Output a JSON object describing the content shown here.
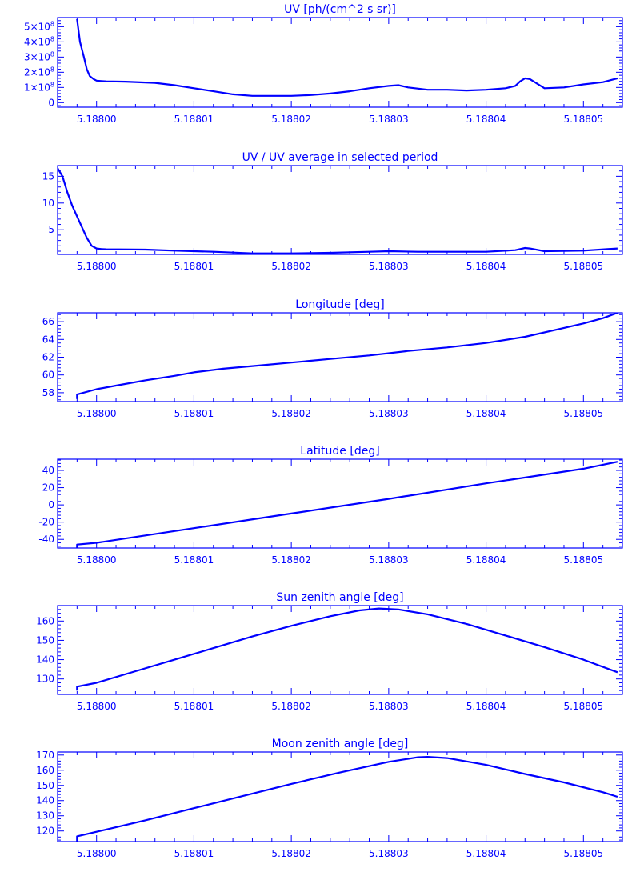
{
  "style": {
    "color": "#0000ff",
    "background": "#ffffff"
  },
  "chart_data": [
    {
      "type": "line",
      "title": "UV [ph/(cm^2 s sr)]",
      "xlim": [
        5.187996,
        5.188054
      ],
      "ylim": [
        -0.3,
        5.6
      ],
      "y_scale_label": "x10^8",
      "xticks": [
        {
          "v": 5.188,
          "label": "5.18800"
        },
        {
          "v": 5.18801,
          "label": "5.18801"
        },
        {
          "v": 5.18802,
          "label": "5.18802"
        },
        {
          "v": 5.18803,
          "label": "5.18803"
        },
        {
          "v": 5.18804,
          "label": "5.18804"
        },
        {
          "v": 5.18805,
          "label": "5.18805"
        }
      ],
      "yticks": [
        {
          "v": 0,
          "base": "0",
          "exp": ""
        },
        {
          "v": 1,
          "base": "1×10",
          "exp": "8"
        },
        {
          "v": 2,
          "base": "2×10",
          "exp": "8"
        },
        {
          "v": 3,
          "base": "3×10",
          "exp": "8"
        },
        {
          "v": 4,
          "base": "4×10",
          "exp": "8"
        },
        {
          "v": 5,
          "base": "5×10",
          "exp": "8"
        }
      ],
      "series": [
        {
          "x": [
            5.187998,
            5.1879983,
            5.1879987,
            5.187999,
            5.1879993,
            5.1879997,
            5.188,
            5.1880005,
            5.188001,
            5.188003,
            5.188006,
            5.188008,
            5.18801,
            5.188012,
            5.188014,
            5.188016,
            5.188018,
            5.18802,
            5.188022,
            5.188024,
            5.188026,
            5.188028,
            5.18803,
            5.188031,
            5.188032,
            5.188034,
            5.188036,
            5.188038,
            5.18804,
            5.188042,
            5.188043,
            5.1880435,
            5.188044,
            5.1880445,
            5.188045,
            5.188046,
            5.188048,
            5.18805,
            5.188052,
            5.1880535
          ],
          "y": [
            5.5,
            4.0,
            3.0,
            2.2,
            1.75,
            1.55,
            1.45,
            1.42,
            1.4,
            1.38,
            1.3,
            1.15,
            0.95,
            0.75,
            0.55,
            0.45,
            0.45,
            0.45,
            0.5,
            0.6,
            0.75,
            0.95,
            1.1,
            1.15,
            1.0,
            0.85,
            0.85,
            0.8,
            0.85,
            0.95,
            1.1,
            1.4,
            1.6,
            1.55,
            1.35,
            0.95,
            1.0,
            1.2,
            1.35,
            1.6
          ]
        }
      ]
    },
    {
      "type": "line",
      "title": "UV / UV average in selected period",
      "xlim": [
        5.187996,
        5.188054
      ],
      "ylim": [
        0.4,
        17
      ],
      "xticks": [
        {
          "v": 5.188,
          "label": "5.18800"
        },
        {
          "v": 5.18801,
          "label": "5.18801"
        },
        {
          "v": 5.18802,
          "label": "5.18802"
        },
        {
          "v": 5.18803,
          "label": "5.18803"
        },
        {
          "v": 5.18804,
          "label": "5.18804"
        },
        {
          "v": 5.18805,
          "label": "5.18805"
        }
      ],
      "yticks": [
        {
          "v": 5,
          "base": "5",
          "exp": ""
        },
        {
          "v": 10,
          "base": "10",
          "exp": ""
        },
        {
          "v": 15,
          "base": "15",
          "exp": ""
        }
      ],
      "series": [
        {
          "x": [
            5.187996,
            5.1879965,
            5.187997,
            5.1879975,
            5.187998,
            5.1879985,
            5.187999,
            5.1879995,
            5.188,
            5.1880005,
            5.188001,
            5.188005,
            5.188008,
            5.188012,
            5.188016,
            5.18802,
            5.188024,
            5.188028,
            5.18803,
            5.188033,
            5.188036,
            5.18804,
            5.188043,
            5.188044,
            5.1880445,
            5.188046,
            5.18805,
            5.1880535
          ],
          "y": [
            16.5,
            15.0,
            12.0,
            9.5,
            7.5,
            5.5,
            3.5,
            2.0,
            1.5,
            1.4,
            1.35,
            1.3,
            1.1,
            0.9,
            0.6,
            0.6,
            0.7,
            0.9,
            1.0,
            0.9,
            0.9,
            0.9,
            1.2,
            1.6,
            1.5,
            1.0,
            1.1,
            1.5
          ]
        }
      ]
    },
    {
      "type": "line",
      "title": "Longitude [deg]",
      "xlim": [
        5.187996,
        5.188054
      ],
      "ylim": [
        57.0,
        67.0
      ],
      "xticks": [
        {
          "v": 5.188,
          "label": "5.18800"
        },
        {
          "v": 5.18801,
          "label": "5.18801"
        },
        {
          "v": 5.18802,
          "label": "5.18802"
        },
        {
          "v": 5.18803,
          "label": "5.18803"
        },
        {
          "v": 5.18804,
          "label": "5.18804"
        },
        {
          "v": 5.18805,
          "label": "5.18805"
        }
      ],
      "yticks": [
        {
          "v": 58,
          "base": "58",
          "exp": ""
        },
        {
          "v": 60,
          "base": "60",
          "exp": ""
        },
        {
          "v": 62,
          "base": "62",
          "exp": ""
        },
        {
          "v": 64,
          "base": "64",
          "exp": ""
        },
        {
          "v": 66,
          "base": "66",
          "exp": ""
        }
      ],
      "series": [
        {
          "x": [
            5.187998,
            5.187998,
            5.188,
            5.188002,
            5.188005,
            5.188008,
            5.18801,
            5.188013,
            5.188016,
            5.18802,
            5.188024,
            5.188028,
            5.188032,
            5.188036,
            5.18804,
            5.188044,
            5.188048,
            5.18805,
            5.188052,
            5.1880535
          ],
          "y": [
            57.3,
            57.8,
            58.4,
            58.8,
            59.4,
            59.9,
            60.3,
            60.7,
            61.0,
            61.4,
            61.8,
            62.2,
            62.7,
            63.1,
            63.6,
            64.3,
            65.3,
            65.8,
            66.4,
            67.0
          ]
        }
      ]
    },
    {
      "type": "line",
      "title": "Latitude [deg]",
      "xlim": [
        5.187996,
        5.188054
      ],
      "ylim": [
        -50,
        53
      ],
      "xticks": [
        {
          "v": 5.188,
          "label": "5.18800"
        },
        {
          "v": 5.18801,
          "label": "5.18801"
        },
        {
          "v": 5.18802,
          "label": "5.18802"
        },
        {
          "v": 5.18803,
          "label": "5.18803"
        },
        {
          "v": 5.18804,
          "label": "5.18804"
        },
        {
          "v": 5.18805,
          "label": "5.18805"
        }
      ],
      "yticks": [
        {
          "v": -40,
          "base": "-40",
          "exp": ""
        },
        {
          "v": -20,
          "base": "-20",
          "exp": ""
        },
        {
          "v": 0,
          "base": "0",
          "exp": ""
        },
        {
          "v": 20,
          "base": "20",
          "exp": ""
        },
        {
          "v": 40,
          "base": "40",
          "exp": ""
        }
      ],
      "series": [
        {
          "x": [
            5.187998,
            5.187998,
            5.188,
            5.18801,
            5.18802,
            5.18803,
            5.18804,
            5.18805,
            5.1880535
          ],
          "y": [
            -50,
            -46,
            -44,
            -27,
            -10,
            7,
            25,
            42,
            50
          ]
        }
      ]
    },
    {
      "type": "line",
      "title": "Sun zenith angle [deg]",
      "xlim": [
        5.187996,
        5.188054
      ],
      "ylim": [
        122,
        168
      ],
      "xticks": [
        {
          "v": 5.188,
          "label": "5.18800"
        },
        {
          "v": 5.18801,
          "label": "5.18801"
        },
        {
          "v": 5.18802,
          "label": "5.18802"
        },
        {
          "v": 5.18803,
          "label": "5.18803"
        },
        {
          "v": 5.18804,
          "label": "5.18804"
        },
        {
          "v": 5.18805,
          "label": "5.18805"
        }
      ],
      "yticks": [
        {
          "v": 130,
          "base": "130",
          "exp": ""
        },
        {
          "v": 140,
          "base": "140",
          "exp": ""
        },
        {
          "v": 150,
          "base": "150",
          "exp": ""
        },
        {
          "v": 160,
          "base": "160",
          "exp": ""
        }
      ],
      "series": [
        {
          "x": [
            5.187998,
            5.187998,
            5.188,
            5.188004,
            5.188008,
            5.188012,
            5.188016,
            5.18802,
            5.188024,
            5.188027,
            5.188029,
            5.188031,
            5.188034,
            5.188038,
            5.188042,
            5.188046,
            5.18805,
            5.1880535
          ],
          "y": [
            124,
            126,
            128,
            134,
            140,
            146,
            152,
            157.5,
            162.5,
            165.5,
            166.5,
            166,
            163.5,
            158.5,
            152.5,
            146.5,
            140,
            133.5
          ]
        }
      ]
    },
    {
      "type": "line",
      "title": "Moon zenith angle [deg]",
      "xlim": [
        5.187996,
        5.188054
      ],
      "ylim": [
        113,
        172
      ],
      "xticks": [
        {
          "v": 5.188,
          "label": "5.18800"
        },
        {
          "v": 5.18801,
          "label": "5.18801"
        },
        {
          "v": 5.18802,
          "label": "5.18802"
        },
        {
          "v": 5.18803,
          "label": "5.18803"
        },
        {
          "v": 5.18804,
          "label": "5.18804"
        },
        {
          "v": 5.18805,
          "label": "5.18805"
        }
      ],
      "yticks": [
        {
          "v": 120,
          "base": "120",
          "exp": ""
        },
        {
          "v": 130,
          "base": "130",
          "exp": ""
        },
        {
          "v": 140,
          "base": "140",
          "exp": ""
        },
        {
          "v": 150,
          "base": "150",
          "exp": ""
        },
        {
          "v": 160,
          "base": "160",
          "exp": ""
        },
        {
          "v": 170,
          "base": "170",
          "exp": ""
        }
      ],
      "series": [
        {
          "x": [
            5.187998,
            5.187998,
            5.188,
            5.188005,
            5.18801,
            5.188015,
            5.18802,
            5.188025,
            5.18803,
            5.188033,
            5.188034,
            5.188036,
            5.18804,
            5.188044,
            5.188048,
            5.188052,
            5.1880535
          ],
          "y": [
            113,
            116.5,
            119.5,
            127,
            135,
            143,
            151,
            158.5,
            165.5,
            168.5,
            168.8,
            168,
            163.5,
            157.5,
            152,
            145.5,
            142.5
          ]
        }
      ]
    }
  ]
}
